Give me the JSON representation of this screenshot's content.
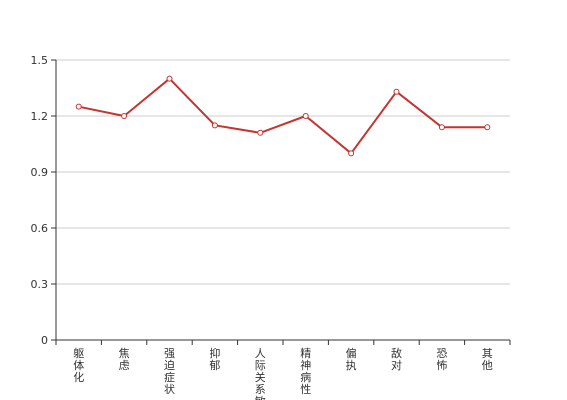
{
  "chart_data": {
    "type": "line",
    "categories": [
      "躯体化",
      "焦虑",
      "强迫症状",
      "抑郁",
      "人际关系敏感",
      "精神病性",
      "偏执",
      "敌对",
      "恐怖",
      "其他"
    ],
    "series": [
      {
        "values": [
          1.25,
          1.2,
          1.4,
          1.15,
          1.11,
          1.2,
          1.0,
          1.33,
          1.14,
          1.14
        ]
      }
    ],
    "ylim": [
      0,
      1.5
    ],
    "yticks": [
      0,
      0.3,
      0.6,
      0.9,
      1.2,
      1.5
    ],
    "ytick_labels": [
      "0",
      "0.3",
      "0.6",
      "0.9",
      "1.2",
      "1.5"
    ],
    "grid": true,
    "colors": {
      "line": "#c23531",
      "grid": "#cccccc",
      "axis": "#333333"
    }
  }
}
